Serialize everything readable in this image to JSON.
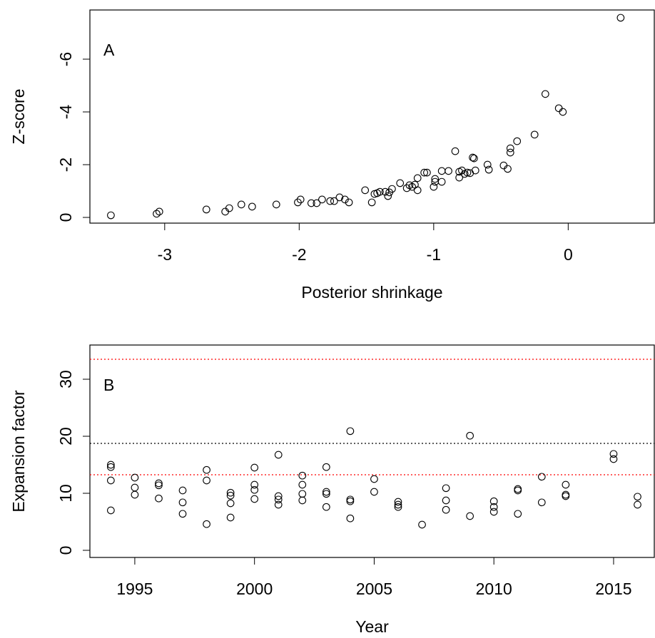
{
  "chart_data": [
    {
      "type": "scatter",
      "annotation": "A",
      "xlabel": "Posterior shrinkage",
      "ylabel": "Z-score",
      "color": "#000000",
      "x": [
        -3.4,
        -3.06,
        -3.04,
        -2.69,
        -2.55,
        -2.52,
        -2.43,
        -2.35,
        -2.17,
        -2.01,
        -1.99,
        -1.91,
        -1.87,
        -1.83,
        -1.77,
        -1.74,
        -1.7,
        -1.66,
        -1.63,
        -1.51,
        -1.46,
        -1.44,
        -1.42,
        -1.4,
        -1.36,
        -1.34,
        -1.33,
        -1.31,
        -1.25,
        -1.2,
        -1.18,
        -1.16,
        -1.14,
        -1.12,
        -1.12,
        -1.07,
        -1.05,
        -1.0,
        -0.99,
        -0.99,
        -0.94,
        -0.94,
        -0.89,
        -0.84,
        -0.81,
        -0.81,
        -0.79,
        -0.77,
        -0.75,
        -0.73,
        -0.71,
        -0.7,
        -0.69,
        -0.6,
        -0.59,
        -0.48,
        -0.45,
        -0.43,
        -0.43,
        -0.38,
        -0.25,
        -0.17,
        -0.07,
        -0.04,
        0.39
      ],
      "values": [
        -0.08,
        -0.14,
        -0.22,
        -0.3,
        -0.22,
        -0.35,
        -0.49,
        -0.41,
        -0.49,
        -0.57,
        -0.68,
        -0.54,
        -0.54,
        -0.68,
        -0.62,
        -0.62,
        -0.76,
        -0.68,
        -0.57,
        -1.03,
        -0.57,
        -0.89,
        -0.92,
        -0.97,
        -0.97,
        -0.81,
        -0.95,
        -1.08,
        -1.3,
        -1.11,
        -1.22,
        -1.16,
        -1.24,
        -1.03,
        -1.49,
        -1.7,
        -1.7,
        -1.16,
        -1.35,
        -1.46,
        -1.35,
        -1.76,
        -1.76,
        -2.51,
        -1.51,
        -1.73,
        -1.78,
        -1.65,
        -1.7,
        -1.68,
        -2.27,
        -2.24,
        -1.78,
        -2.0,
        -1.81,
        -1.97,
        -1.84,
        -2.46,
        -2.62,
        -2.89,
        -3.14,
        -4.68,
        -4.14,
        -4.0,
        -7.57
      ],
      "xlim": [
        -3.556,
        0.64
      ],
      "ylim": [
        0.216,
        -7.865
      ],
      "xticks": [
        -3,
        -2,
        -1,
        0
      ],
      "yticks": [
        0,
        -2,
        -4,
        -6
      ]
    },
    {
      "type": "scatter",
      "annotation": "B",
      "xlabel": "Year",
      "ylabel": "Expansion factor",
      "color": "#000000",
      "x": [
        1994,
        1994,
        1994,
        1994,
        1995,
        1995,
        1995,
        1996,
        1996,
        1996,
        1997,
        1997,
        1997,
        1998,
        1998,
        1998,
        1999,
        1999,
        1999,
        1999,
        2000,
        2000,
        2000,
        2000,
        2001,
        2001,
        2001,
        2001,
        2002,
        2002,
        2002,
        2002,
        2003,
        2003,
        2003,
        2003,
        2004,
        2004,
        2004,
        2004,
        2005,
        2005,
        2006,
        2006,
        2006,
        2007,
        2008,
        2008,
        2008,
        2009,
        2009,
        2010,
        2010,
        2010,
        2011,
        2011,
        2011,
        2012,
        2012,
        2013,
        2013,
        2013,
        2015,
        2015,
        2016,
        2016
      ],
      "values": [
        15.0,
        14.6,
        12.25,
        7.0,
        12.75,
        11.0,
        9.75,
        11.75,
        11.4,
        9.1,
        10.5,
        8.4,
        6.4,
        14.1,
        12.25,
        4.6,
        10.1,
        9.6,
        8.25,
        5.75,
        14.5,
        11.5,
        10.6,
        9.0,
        16.75,
        9.5,
        8.9,
        8.0,
        13.1,
        11.5,
        9.9,
        8.75,
        14.6,
        10.25,
        9.9,
        7.6,
        20.9,
        8.9,
        8.6,
        5.6,
        12.5,
        10.25,
        8.5,
        8.0,
        7.6,
        4.5,
        10.9,
        8.75,
        7.1,
        20.1,
        6.0,
        8.6,
        7.6,
        6.75,
        10.75,
        10.5,
        6.4,
        12.9,
        8.4,
        11.5,
        9.75,
        9.5,
        16.9,
        16.0,
        9.4,
        8.0
      ],
      "xlim": [
        1993.125,
        2016.7
      ],
      "ylim": [
        -1.25,
        36
      ],
      "xticks": [
        1995,
        2000,
        2005,
        2010,
        2015
      ],
      "yticks": [
        0,
        10,
        20,
        30
      ],
      "reference_lines": [
        {
          "value": 33.5,
          "color": "#ff0000"
        },
        {
          "value": 18.75,
          "color": "#000000"
        },
        {
          "value": 13.25,
          "color": "#ff0000"
        }
      ]
    }
  ]
}
